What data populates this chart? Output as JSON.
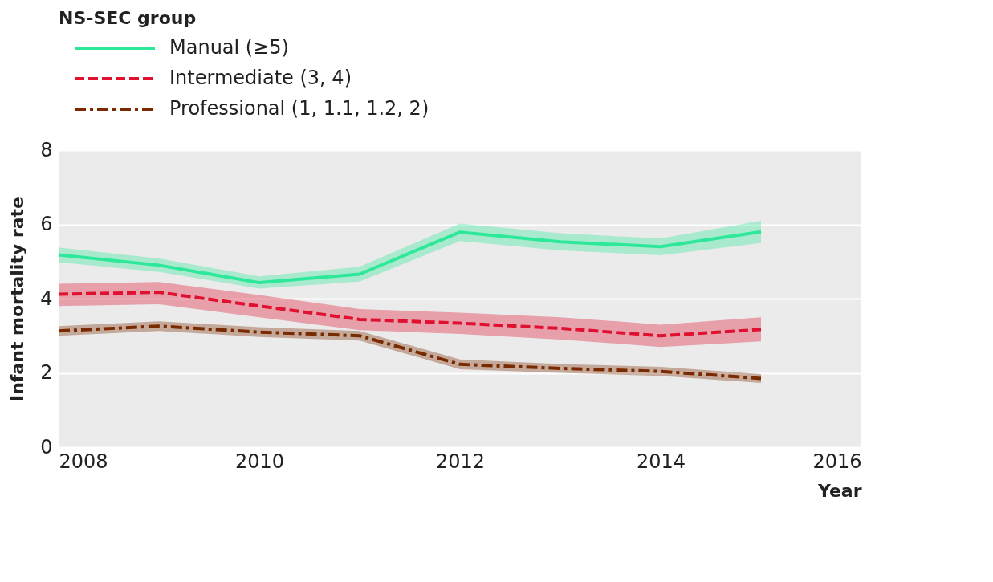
{
  "chart_data": {
    "type": "line",
    "xlabel": "Year",
    "ylabel": "Infant mortality rate",
    "legend_title": "NS-SEC group",
    "x": [
      2008,
      2009,
      2010,
      2011,
      2012,
      2013,
      2014,
      2015
    ],
    "series": [
      {
        "name": "Manual (≥5)",
        "color": "#2ee89a",
        "line_style": "solid",
        "values": [
          5.18,
          4.9,
          4.43,
          4.66,
          5.79,
          5.53,
          5.4,
          5.8
        ],
        "lower": [
          4.98,
          4.72,
          4.27,
          4.46,
          5.55,
          5.3,
          5.17,
          5.5
        ],
        "upper": [
          5.38,
          5.08,
          4.6,
          4.86,
          6.02,
          5.76,
          5.62,
          6.1
        ]
      },
      {
        "name": "Intermediate (3, 4)",
        "color": "#e01030",
        "line_style": "dashed",
        "values": [
          4.12,
          4.17,
          3.8,
          3.44,
          3.34,
          3.2,
          3.0,
          3.17
        ],
        "lower": [
          3.8,
          3.85,
          3.5,
          3.15,
          3.05,
          2.9,
          2.7,
          2.85
        ],
        "upper": [
          4.4,
          4.45,
          4.1,
          3.72,
          3.62,
          3.5,
          3.3,
          3.5
        ]
      },
      {
        "name": "Professional (1, 1.1, 1.2, 2)",
        "color": "#7a2a00",
        "line_style": "dashdot",
        "values": [
          3.13,
          3.26,
          3.1,
          3.0,
          2.23,
          2.12,
          2.04,
          1.85
        ],
        "lower": [
          3.0,
          3.13,
          2.97,
          2.87,
          2.1,
          2.0,
          1.92,
          1.73
        ],
        "upper": [
          3.26,
          3.39,
          3.23,
          3.13,
          2.36,
          2.24,
          2.16,
          1.97
        ]
      }
    ],
    "xlim": [
      2008,
      2016
    ],
    "xticks": [
      2008,
      2010,
      2012,
      2014,
      2016
    ],
    "ylim": [
      0,
      8
    ],
    "yticks": [
      0,
      2,
      4,
      6,
      8
    ],
    "grid": "y",
    "legend": "top left"
  }
}
